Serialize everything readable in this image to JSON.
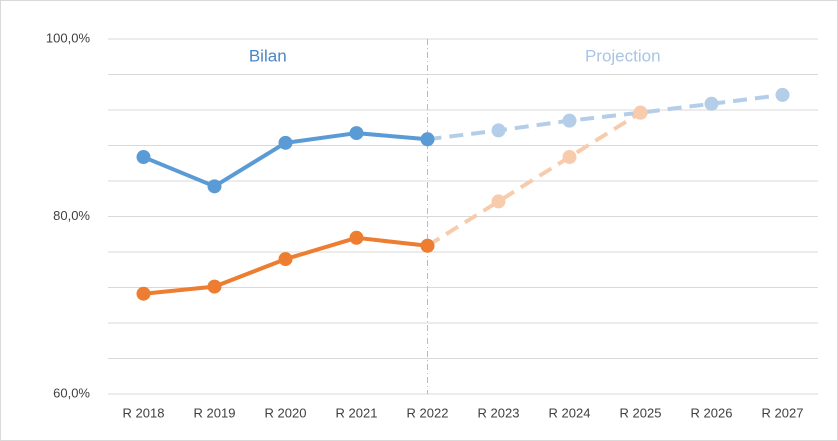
{
  "chart_data": {
    "type": "line",
    "annotations": [
      "Bilan",
      "Projection"
    ],
    "annotation_colors": [
      "#4a86c5",
      "#a9c4e6"
    ],
    "divider_at": "R 2022",
    "categories": [
      "R 2018",
      "R 2019",
      "R 2020",
      "R 2021",
      "R 2022",
      "R 2023",
      "R 2024",
      "R 2025",
      "R 2026",
      "R 2027"
    ],
    "series": [
      {
        "color": "#5b9bd5",
        "dashed": false,
        "values": [
          86.7,
          83.4,
          88.3,
          89.4,
          88.7,
          null,
          null,
          null,
          null,
          null
        ]
      },
      {
        "color": "#ed7d31",
        "dashed": false,
        "values": [
          71.3,
          72.1,
          75.2,
          77.6,
          76.7,
          null,
          null,
          null,
          null,
          null
        ]
      },
      {
        "color": "#b4cde9",
        "dashed": true,
        "values": [
          null,
          null,
          null,
          null,
          88.7,
          89.7,
          90.8,
          91.7,
          92.7,
          93.7
        ]
      },
      {
        "color": "#f8cbad",
        "dashed": true,
        "values": [
          null,
          null,
          null,
          null,
          76.7,
          81.7,
          86.7,
          91.7,
          null,
          null
        ]
      }
    ],
    "ylim": [
      60,
      100
    ],
    "yticks": [
      {
        "value": 60,
        "label": "60,0%"
      },
      {
        "value": 80,
        "label": "80,0%"
      },
      {
        "value": 100,
        "label": "100,0%"
      }
    ],
    "yminor_ticks": [
      64,
      68,
      72,
      76,
      84,
      88,
      92,
      96
    ],
    "grid": true
  }
}
